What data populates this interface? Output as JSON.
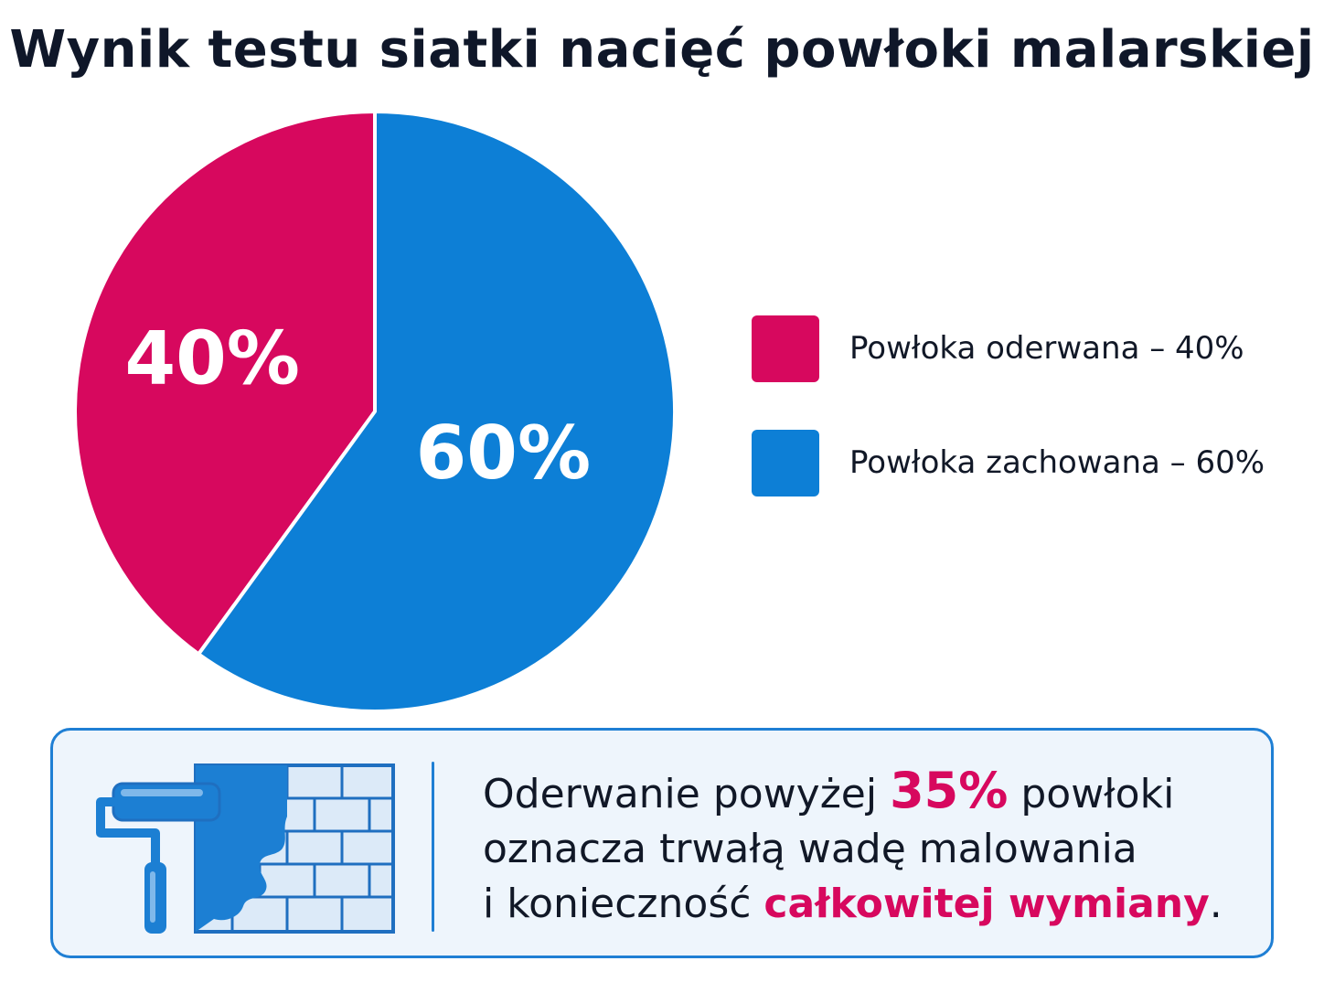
{
  "title": "Wynik testu siatki nacięć powłoki malarskiej",
  "colors": {
    "detached": "#d7085e",
    "retained": "#0d7fd6",
    "accent_text": "#d7085e",
    "box_border": "#1f7fd4",
    "box_background": "#eef5fc"
  },
  "chart_data": {
    "type": "pie",
    "title": "Wynik testu siatki nacięć powłoki malarskiej",
    "slices": [
      {
        "label": "Powłoka oderwana – 40%",
        "value": 40,
        "display": "40%",
        "color": "#d7085e"
      },
      {
        "label": "Powłoka zachowana – 60%",
        "value": 60,
        "display": "60%",
        "color": "#0d7fd6"
      }
    ],
    "start_angle_deg": 0,
    "direction": "counterclockwise",
    "legend_position": "right"
  },
  "legend": [
    {
      "label": "Powłoka oderwana – 40%",
      "color": "#d7085e"
    },
    {
      "label": "Powłoka zachowana – 60%",
      "color": "#0d7fd6"
    }
  ],
  "callout": {
    "icon": "paint-roller-brick-wall-icon",
    "line1_before": "Oderwanie powyżej ",
    "line1_highlight": "35%",
    "line1_after": " powłoki",
    "line2": "oznacza trwałą wadę malowania",
    "line3_before": "i konieczność ",
    "line3_highlight": "całkowitej wymiany",
    "line3_after": "."
  }
}
